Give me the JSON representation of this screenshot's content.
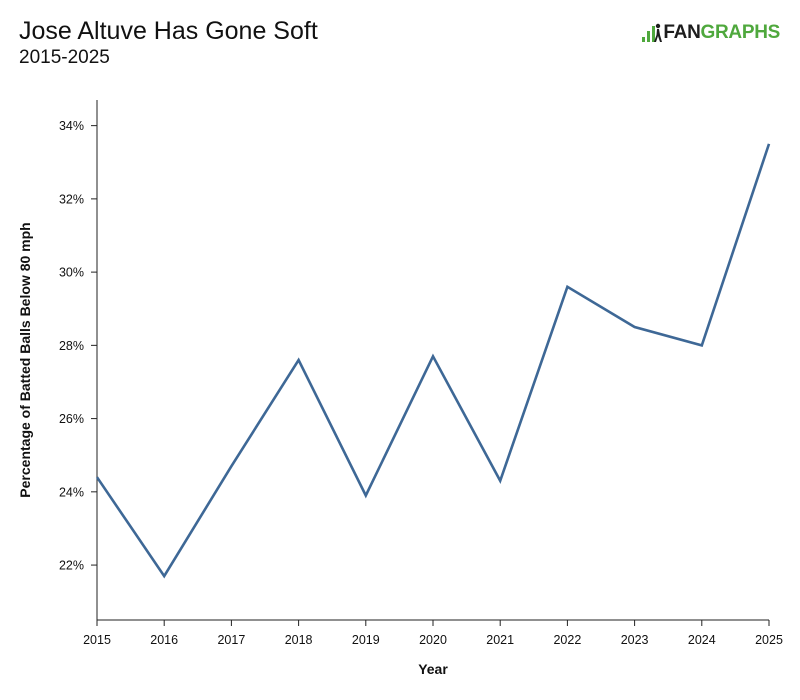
{
  "header": {
    "title": "Jose Altuve Has Gone Soft",
    "subtitle": "2015-2025"
  },
  "logo": {
    "text_part1": "FAN",
    "text_part2": "GRAPHS",
    "color_primary": "#4fa83d",
    "color_dark": "#1d1d1d",
    "icon": "fangraphs-logo-icon"
  },
  "chart_data": {
    "type": "line",
    "xlabel": "Year",
    "ylabel": "Percentage of Batted Balls Below 80 mph",
    "x": [
      2015,
      2016,
      2017,
      2018,
      2019,
      2020,
      2021,
      2022,
      2023,
      2024,
      2025
    ],
    "y_ticks": [
      "22%",
      "24%",
      "26%",
      "28%",
      "30%",
      "32%",
      "34%"
    ],
    "y_tick_values": [
      22,
      24,
      26,
      28,
      30,
      32,
      34
    ],
    "xlim": [
      2015,
      2025
    ],
    "ylim": [
      20.5,
      34.7
    ],
    "grid": false,
    "series": [
      {
        "color": "#3e6896",
        "values": [
          24.4,
          21.7,
          24.7,
          27.6,
          23.9,
          27.7,
          24.3,
          29.6,
          28.5,
          28.0,
          33.5
        ]
      }
    ]
  }
}
